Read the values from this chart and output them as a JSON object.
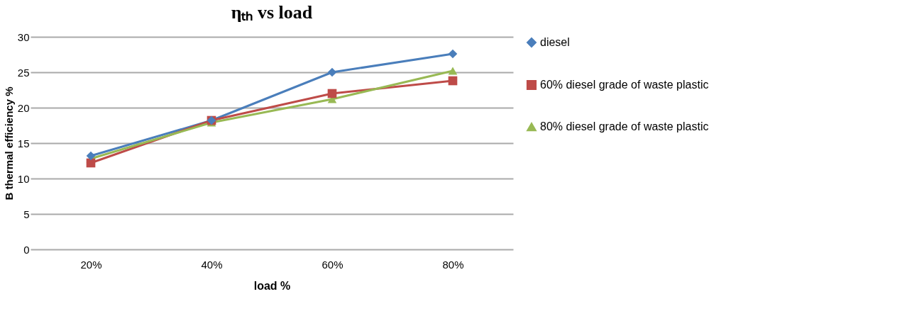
{
  "chart_data": {
    "type": "line",
    "title": "ηₜₕ vs load",
    "xlabel": "load %",
    "ylabel": "B  thermal efficiency %",
    "categories": [
      "20%",
      "40%",
      "60%",
      "80%"
    ],
    "ylim": [
      0,
      30
    ],
    "yticks": [
      0,
      5,
      10,
      15,
      20,
      25,
      30
    ],
    "grid": "y",
    "legend": "right",
    "line_style": "solid",
    "series": [
      {
        "name": "diesel",
        "color": "#4a7ebb",
        "marker": "diamond",
        "values": [
          13.2,
          18.2,
          25.0,
          27.6
        ]
      },
      {
        "name": "60%  diesel grade of waste plastic",
        "color": "#be4b48",
        "marker": "square",
        "values": [
          12.2,
          18.2,
          22.0,
          23.8
        ]
      },
      {
        "name": "80% diesel grade of waste plastic",
        "color": "#98b954",
        "marker": "triangle",
        "values": [
          12.8,
          17.9,
          21.2,
          25.2
        ]
      }
    ]
  }
}
